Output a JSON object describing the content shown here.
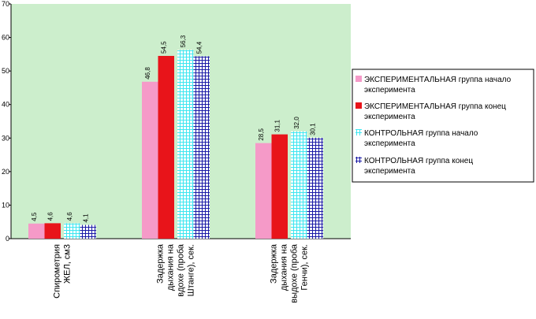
{
  "chart_data": {
    "type": "bar",
    "categories": [
      [
        "Спирометрия",
        "ЖЕЛ, см3"
      ],
      [
        "Задержка",
        "дыхания на",
        "вдохе (проба",
        "Штанге), сек."
      ],
      [
        "Задержка",
        "дыхания на",
        "выдохе (проба",
        "Генчи), сек."
      ]
    ],
    "series": [
      {
        "name": [
          "ЭКСПЕРИМЕНТАЛЬНАЯ группа начало",
          "эксперимента"
        ],
        "values": [
          4.5,
          46.8,
          28.5
        ],
        "labels": [
          "4,5",
          "46,8",
          "28,5"
        ],
        "color": "#f59ac8",
        "pattern": "solid"
      },
      {
        "name": [
          "ЭКСПЕРИМЕНТАЛЬНАЯ  группа конец",
          "эксперимента"
        ],
        "values": [
          4.6,
          54.5,
          31.1
        ],
        "labels": [
          "4,6",
          "54,5",
          "31,1"
        ],
        "color": "#e8141a",
        "pattern": "solid"
      },
      {
        "name": [
          "КОНТРОЛЬНАЯ группа  начало",
          "эксперимента"
        ],
        "values": [
          4.6,
          56.3,
          32.0
        ],
        "labels": [
          "4,6",
          "56,3",
          "32,0"
        ],
        "color": "#3ee6f0",
        "pattern": "grid"
      },
      {
        "name": [
          "КОНТРОЛЬНАЯ группа  конец",
          "эксперимента"
        ],
        "values": [
          4.1,
          54.4,
          30.1
        ],
        "labels": [
          "4,1",
          "54,4",
          "30,1"
        ],
        "color": "#1a1aa6",
        "pattern": "grid"
      }
    ],
    "yticks": [
      "0",
      "10",
      "20",
      "30",
      "40",
      "50",
      "60",
      "70"
    ],
    "ylim": [
      0,
      70
    ],
    "title": "",
    "xlabel": "",
    "ylabel": "",
    "grid": false,
    "legend": "right",
    "plot_background": "#cceecc"
  }
}
